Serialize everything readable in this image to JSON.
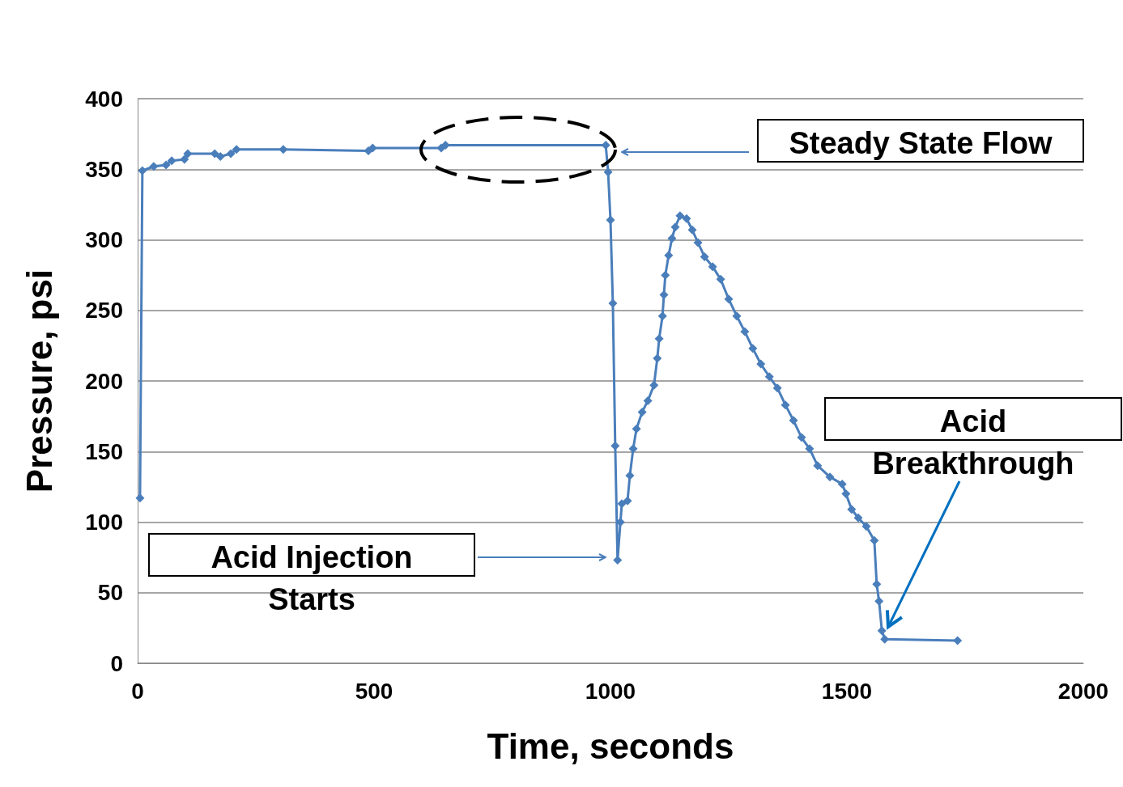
{
  "chart_data": {
    "type": "line",
    "xlabel": "Time, seconds",
    "ylabel": "Pressure, psi",
    "xlim": [
      0,
      2000
    ],
    "xticks": [
      0,
      500,
      1000,
      1500,
      2000
    ],
    "ylim": [
      0,
      400
    ],
    "yticks": [
      0,
      50,
      100,
      150,
      200,
      250,
      300,
      350,
      400
    ],
    "grid": "y",
    "marker": "diamond",
    "line_style": "solid",
    "series": [
      {
        "color": "#4a7ebb",
        "x": [
          5,
          10,
          34,
          60,
          72,
          99,
          106,
          163,
          175,
          197,
          209,
          308,
          488,
          497,
          642,
          651,
          990,
          995,
          1000,
          1005,
          1010,
          1015,
          1021,
          1024,
          1036,
          1041,
          1048,
          1055,
          1067,
          1079,
          1092,
          1099,
          1103,
          1110,
          1113,
          1116,
          1123,
          1130,
          1137,
          1147,
          1161,
          1173,
          1185,
          1199,
          1216,
          1233,
          1250,
          1267,
          1284,
          1301,
          1318,
          1336,
          1353,
          1370,
          1387,
          1404,
          1421,
          1438,
          1464,
          1490,
          1498,
          1510,
          1524,
          1541,
          1558,
          1563,
          1568,
          1574,
          1580,
          1734
        ],
        "values": [
          117,
          349,
          352,
          353,
          356,
          357,
          361,
          361,
          359,
          361,
          364,
          364,
          363,
          365,
          365,
          367,
          367,
          348,
          314,
          255,
          154,
          73,
          100,
          113,
          115,
          133,
          152,
          166,
          178,
          186,
          197,
          216,
          230,
          246,
          261,
          275,
          289,
          301,
          309,
          317,
          315,
          307,
          298,
          288,
          281,
          272,
          258,
          246,
          235,
          223,
          212,
          203,
          195,
          183,
          172,
          160,
          152,
          140,
          132,
          127,
          120,
          109,
          103,
          97,
          87,
          56,
          44,
          23,
          17,
          16
        ]
      }
    ],
    "annotations": [
      "Steady State Flow",
      "Acid Injection Starts",
      "Acid Breakthrough"
    ]
  }
}
